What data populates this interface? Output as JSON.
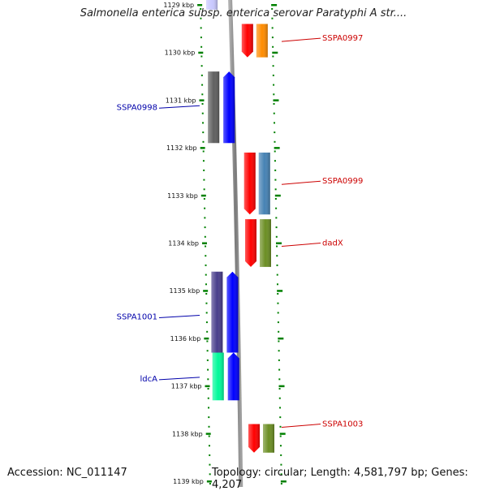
{
  "title": "Salmonella enterica subsp. enterica serovar Paratyphi A str....",
  "footer": {
    "accession": "Accession: NC_011147",
    "topology": "Topology: circular; Length: 4,581,797 bp; Genes: 4,207"
  },
  "colors": {
    "forward_label": "#cc0000",
    "reverse_label": "#0000aa",
    "tick_green": "#008000",
    "backbone": "#8a8a8a"
  },
  "ruler_ticks": [
    "1129 kbp",
    "1130 kbp",
    "1131 kbp",
    "1132 kbp",
    "1133 kbp",
    "1134 kbp",
    "1135 kbp",
    "1136 kbp",
    "1137 kbp",
    "1138 kbp",
    "1139 kbp"
  ],
  "genes": [
    {
      "id": "g-top-reverse",
      "label": "",
      "strand": "reverse",
      "start_kbp": 1128.8,
      "end_kbp": 1129.1,
      "color": "#c8c8ff",
      "lane": "outer"
    },
    {
      "id": "g-sspa0997-a",
      "label": "",
      "strand": "forward",
      "start_kbp": 1129.4,
      "end_kbp": 1130.1,
      "color": "#ff0000",
      "lane": "inner"
    },
    {
      "id": "g-sspa0997",
      "label": "SSPA0997",
      "strand": "forward",
      "start_kbp": 1129.4,
      "end_kbp": 1130.1,
      "color": "#ff8c00",
      "lane": "outer"
    },
    {
      "id": "g-sspa0998-grey",
      "label": "",
      "strand": "reverse",
      "start_kbp": 1130.4,
      "end_kbp": 1131.9,
      "color": "#606060",
      "lane": "outer"
    },
    {
      "id": "g-sspa0998",
      "label": "SSPA0998",
      "strand": "reverse",
      "start_kbp": 1130.4,
      "end_kbp": 1131.9,
      "color": "#0000ff",
      "lane": "inner"
    },
    {
      "id": "g-sspa0999-a",
      "label": "",
      "strand": "forward",
      "start_kbp": 1132.1,
      "end_kbp": 1133.4,
      "color": "#ff0000",
      "lane": "inner"
    },
    {
      "id": "g-sspa0999",
      "label": "SSPA0999",
      "strand": "forward",
      "start_kbp": 1132.1,
      "end_kbp": 1133.4,
      "color": "#4682b4",
      "lane": "outer"
    },
    {
      "id": "g-dadx-a",
      "label": "",
      "strand": "forward",
      "start_kbp": 1133.5,
      "end_kbp": 1134.5,
      "color": "#ff0000",
      "lane": "inner"
    },
    {
      "id": "g-dadx",
      "label": "dadX",
      "strand": "forward",
      "start_kbp": 1133.5,
      "end_kbp": 1134.5,
      "color": "#6b8e23",
      "lane": "outer"
    },
    {
      "id": "g-sspa1001-purple",
      "label": "",
      "strand": "reverse",
      "start_kbp": 1134.6,
      "end_kbp": 1136.3,
      "color": "#483d8b",
      "lane": "outer"
    },
    {
      "id": "g-sspa1001",
      "label": "SSPA1001",
      "strand": "reverse",
      "start_kbp": 1134.6,
      "end_kbp": 1136.3,
      "color": "#0000ff",
      "lane": "inner"
    },
    {
      "id": "g-ldca-teal",
      "label": "",
      "strand": "reverse",
      "start_kbp": 1136.3,
      "end_kbp": 1137.3,
      "color": "#00fa9a",
      "lane": "outer"
    },
    {
      "id": "g-ldca",
      "label": "ldcA",
      "strand": "reverse",
      "start_kbp": 1136.3,
      "end_kbp": 1137.3,
      "color": "#0000ff",
      "lane": "inner"
    },
    {
      "id": "g-sspa1003-a",
      "label": "",
      "strand": "forward",
      "start_kbp": 1137.8,
      "end_kbp": 1138.4,
      "color": "#ff0000",
      "lane": "inner"
    },
    {
      "id": "g-sspa1003",
      "label": "SSPA1003",
      "strand": "forward",
      "start_kbp": 1137.8,
      "end_kbp": 1138.4,
      "color": "#6b8e23",
      "lane": "outer"
    }
  ],
  "gene_labels": [
    {
      "id": "lbl-sspa0997",
      "text": "SSPA0997",
      "side": "right",
      "kbp": 1129.7
    },
    {
      "id": "lbl-sspa0998",
      "text": "SSPA0998",
      "side": "left",
      "kbp": 1131.1
    },
    {
      "id": "lbl-sspa0999",
      "text": "SSPA0999",
      "side": "right",
      "kbp": 1132.7
    },
    {
      "id": "lbl-dadx",
      "text": "dadX",
      "side": "right",
      "kbp": 1134.0
    },
    {
      "id": "lbl-sspa1001",
      "text": "SSPA1001",
      "side": "left",
      "kbp": 1135.5
    },
    {
      "id": "lbl-ldca",
      "text": "ldcA",
      "side": "left",
      "kbp": 1136.8
    },
    {
      "id": "lbl-sspa1003",
      "text": "SSPA1003",
      "side": "right",
      "kbp": 1137.8
    }
  ]
}
